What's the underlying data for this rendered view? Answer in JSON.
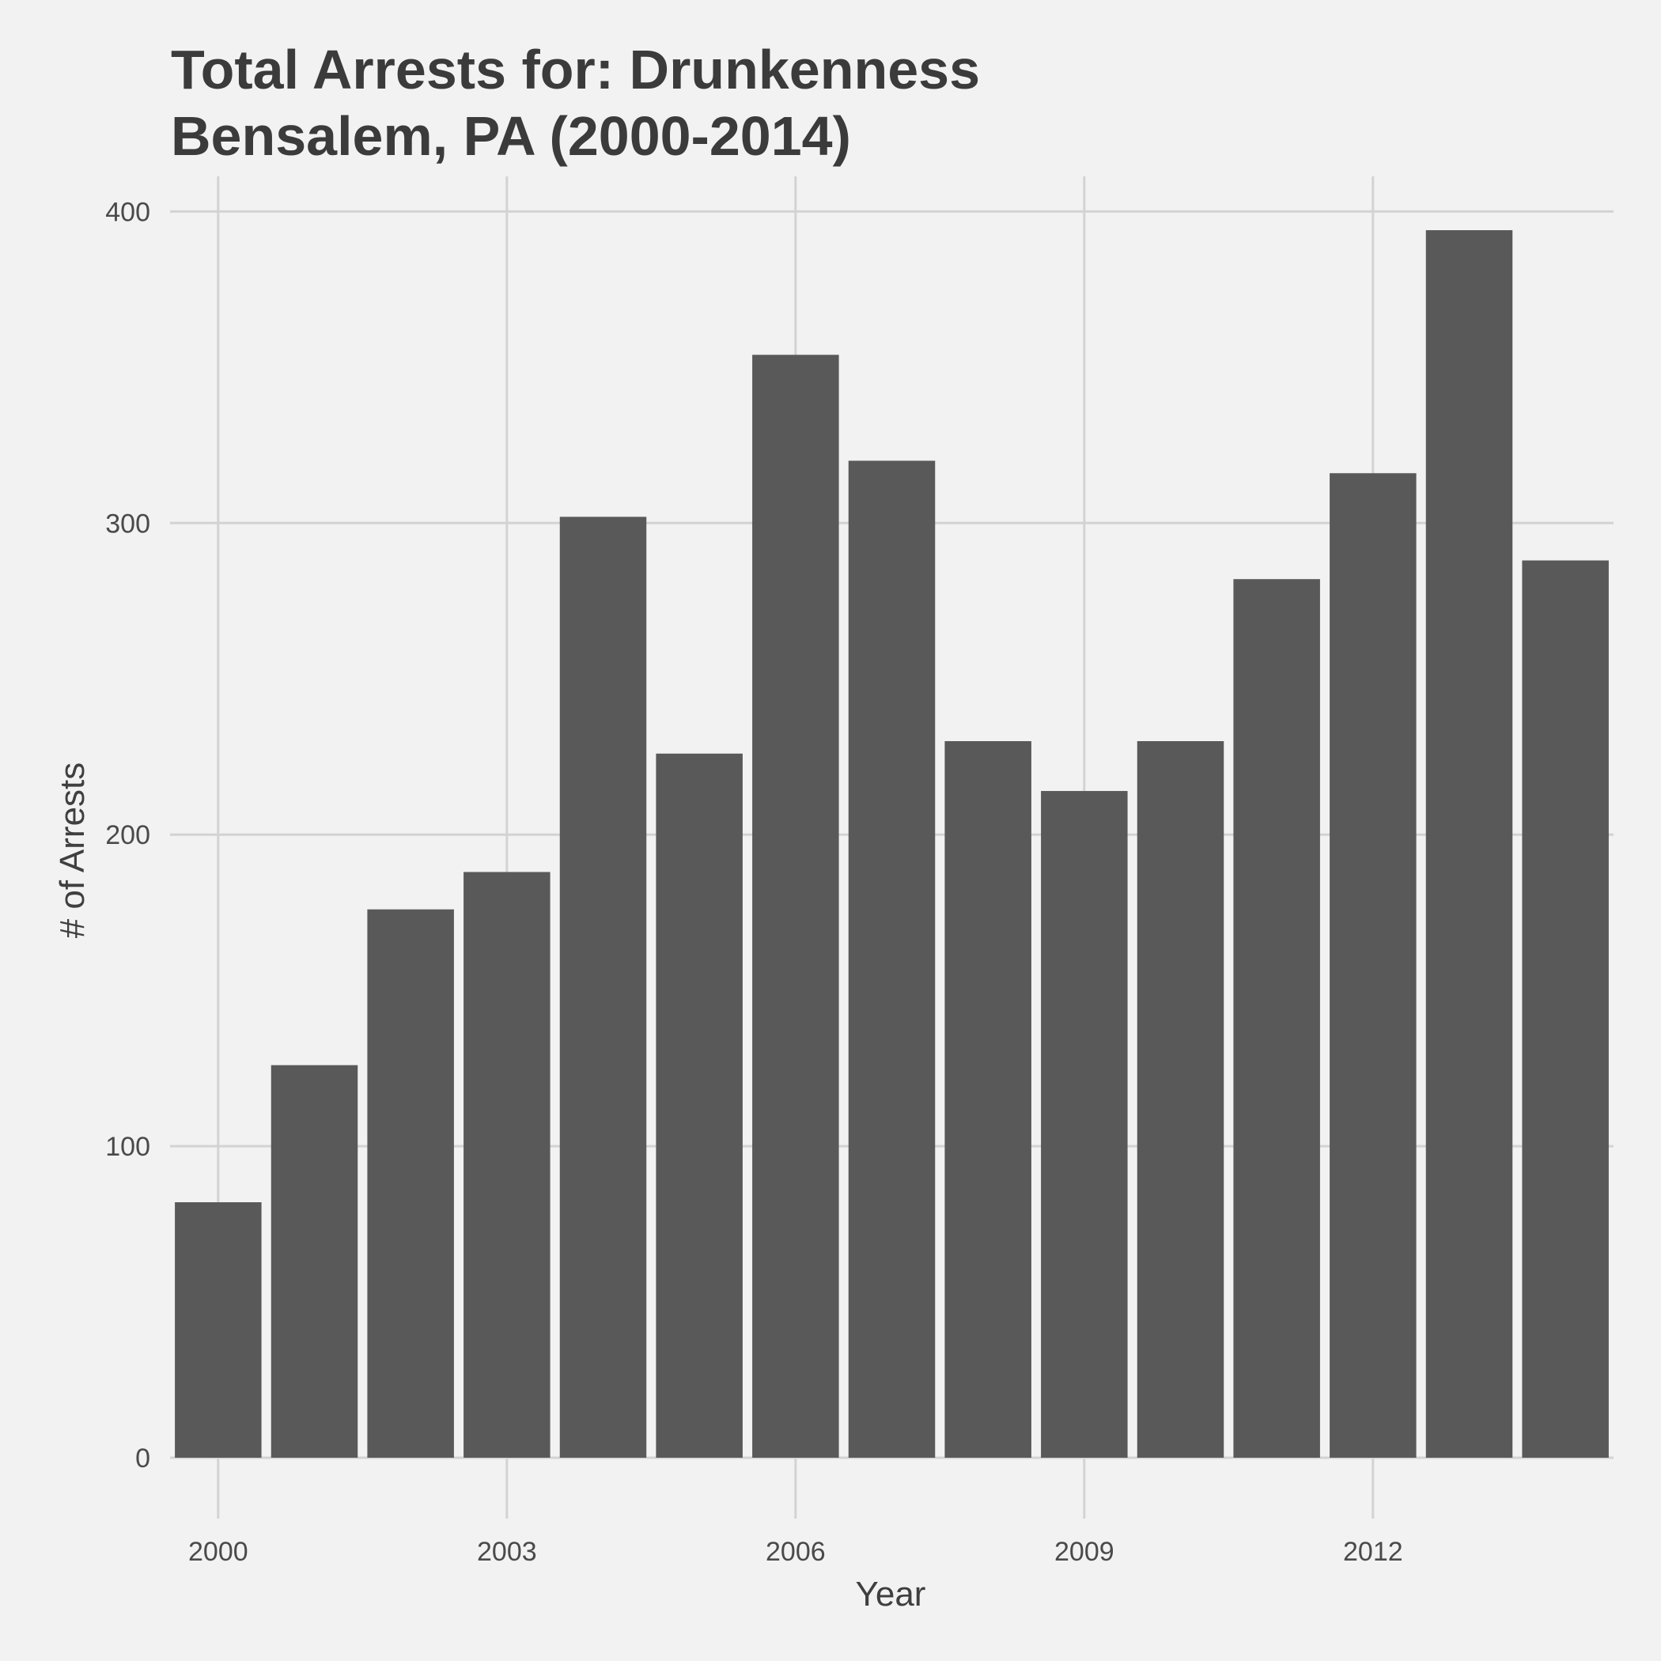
{
  "chart_data": {
    "type": "bar",
    "title": "Total Arrests for: Drunkenness",
    "subtitle": "Bensalem, PA (2000-2014)",
    "xlabel": "Year",
    "ylabel": "# of Arrests",
    "x": [
      2000,
      2001,
      2002,
      2003,
      2004,
      2005,
      2006,
      2007,
      2008,
      2009,
      2010,
      2011,
      2012,
      2013,
      2014
    ],
    "values": [
      82,
      126,
      176,
      188,
      302,
      226,
      354,
      320,
      230,
      214,
      230,
      282,
      316,
      394,
      288
    ],
    "x_ticks": [
      "2000",
      "2003",
      "2006",
      "2009",
      "2012"
    ],
    "y_ticks": [
      "0",
      "100",
      "200",
      "300",
      "400"
    ],
    "ylim": [
      0,
      410
    ],
    "grid": true,
    "colors": {
      "bar": "#595959",
      "grid": "#d3d3d3",
      "background": "#f2f2f2"
    }
  }
}
